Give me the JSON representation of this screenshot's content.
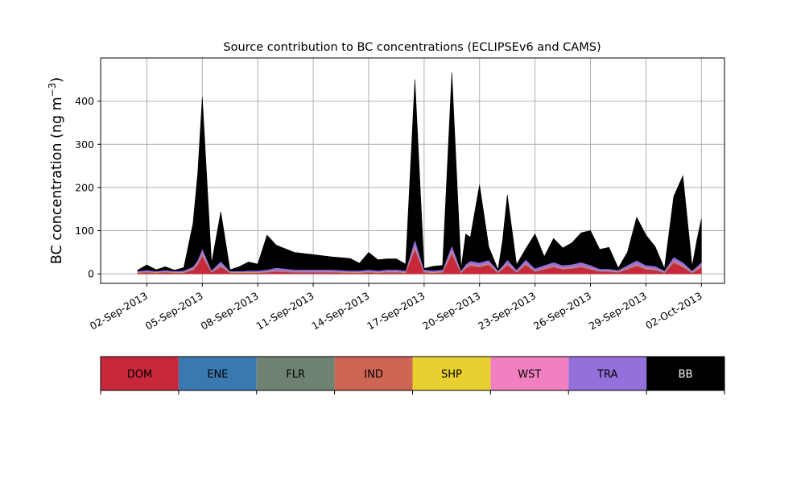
{
  "chart_data": {
    "type": "area",
    "stacked": true,
    "title": "Source contribution to BC concentrations (ECLIPSEv6 and CAMS)",
    "ylabel_main": "BC concentration (ng m",
    "ylabel_sup": "−3",
    "ylabel_end": ")",
    "xlabel": "",
    "ylim": [
      -22,
      500
    ],
    "yticks": [
      0,
      100,
      200,
      300,
      400
    ],
    "xlim": [
      "2013-08-30T12:00",
      "2013-10-03T06:00"
    ],
    "xticks": [
      "02-Sep-2013",
      "05-Sep-2013",
      "08-Sep-2013",
      "11-Sep-2013",
      "14-Sep-2013",
      "17-Sep-2013",
      "20-Sep-2013",
      "23-Sep-2013",
      "26-Sep-2013",
      "29-Sep-2013",
      "02-Oct-2013"
    ],
    "grid": true,
    "legend_position": "below",
    "x": [
      "2013-09-01T12:00",
      "2013-09-02T00:00",
      "2013-09-02T12:00",
      "2013-09-03T00:00",
      "2013-09-03T12:00",
      "2013-09-04T00:00",
      "2013-09-04T12:00",
      "2013-09-04T18:00",
      "2013-09-05T00:00",
      "2013-09-05T12:00",
      "2013-09-06T00:00",
      "2013-09-06T12:00",
      "2013-09-07T00:00",
      "2013-09-07T12:00",
      "2013-09-08T00:00",
      "2013-09-08T12:00",
      "2013-09-09T00:00",
      "2013-09-10T00:00",
      "2013-09-11T00:00",
      "2013-09-12T00:00",
      "2013-09-13T00:00",
      "2013-09-13T12:00",
      "2013-09-14T00:00",
      "2013-09-14T12:00",
      "2013-09-15T00:00",
      "2013-09-15T12:00",
      "2013-09-16T00:00",
      "2013-09-16T12:00",
      "2013-09-17T00:00",
      "2013-09-17T12:00",
      "2013-09-18T00:00",
      "2013-09-18T12:00",
      "2013-09-19T00:00",
      "2013-09-19T06:00",
      "2013-09-19T12:00",
      "2013-09-20T00:00",
      "2013-09-20T12:00",
      "2013-09-21T00:00",
      "2013-09-21T06:00",
      "2013-09-21T12:00",
      "2013-09-22T00:00",
      "2013-09-22T12:00",
      "2013-09-23T00:00",
      "2013-09-23T12:00",
      "2013-09-24T00:00",
      "2013-09-24T12:00",
      "2013-09-25T00:00",
      "2013-09-25T12:00",
      "2013-09-26T00:00",
      "2013-09-26T12:00",
      "2013-09-27T00:00",
      "2013-09-27T12:00",
      "2013-09-28T00:00",
      "2013-09-28T12:00",
      "2013-09-29T00:00",
      "2013-09-29T12:00",
      "2013-09-30T00:00",
      "2013-09-30T12:00",
      "2013-10-01T00:00",
      "2013-10-01T12:00",
      "2013-10-01T18:00",
      "2013-10-02T00:00"
    ],
    "series": [
      {
        "name": "DOM",
        "color": "#c9283a",
        "values": [
          2,
          3,
          2,
          3,
          2,
          2,
          8,
          20,
          40,
          3,
          15,
          2,
          2,
          2,
          2,
          3,
          5,
          3,
          3,
          3,
          2,
          2,
          3,
          2,
          3,
          3,
          2,
          55,
          3,
          2,
          3,
          45,
          2,
          12,
          18,
          15,
          20,
          2,
          10,
          20,
          3,
          20,
          5,
          10,
          15,
          10,
          12,
          15,
          10,
          5,
          5,
          3,
          10,
          18,
          10,
          8,
          2,
          25,
          15,
          2,
          8,
          15
        ]
      },
      {
        "name": "ENE",
        "color": "#3a78b0",
        "values": [
          0.5,
          0.5,
          0.5,
          0.5,
          0.5,
          0.5,
          1,
          1,
          1,
          0.5,
          1,
          0.5,
          0.5,
          0.5,
          0.5,
          0.5,
          0.5,
          0.5,
          0.5,
          0.5,
          0.5,
          0.5,
          0.5,
          0.5,
          0.5,
          0.5,
          0.5,
          1,
          0.5,
          0.5,
          0.5,
          1,
          0.5,
          0.5,
          0.5,
          0.5,
          0.5,
          0.5,
          0.5,
          0.5,
          0.5,
          0.5,
          0.5,
          0.5,
          0.5,
          0.5,
          0.5,
          0.5,
          0.5,
          0.5,
          0.5,
          0.5,
          0.5,
          0.5,
          0.5,
          0.5,
          0.5,
          0.5,
          0.5,
          0.5,
          0.5,
          0.5
        ]
      },
      {
        "name": "FLR",
        "color": "#6f8272",
        "values": [
          0.3,
          0.3,
          0.3,
          0.3,
          0.3,
          0.3,
          0.5,
          0.5,
          0.5,
          0.3,
          0.5,
          0.3,
          0.3,
          0.3,
          0.3,
          0.3,
          0.3,
          0.3,
          0.3,
          0.3,
          0.3,
          0.3,
          0.3,
          0.3,
          0.3,
          0.3,
          0.3,
          0.5,
          0.3,
          0.3,
          0.3,
          0.5,
          0.3,
          0.3,
          0.3,
          0.3,
          0.3,
          0.3,
          0.3,
          0.3,
          0.3,
          0.3,
          0.3,
          0.3,
          0.3,
          0.3,
          0.3,
          0.3,
          0.3,
          0.3,
          0.3,
          0.3,
          0.3,
          0.3,
          0.3,
          0.3,
          0.3,
          0.3,
          0.3,
          0.3,
          0.3,
          0.3
        ]
      },
      {
        "name": "IND",
        "color": "#cc6554",
        "values": [
          1,
          1,
          1,
          1,
          1,
          1,
          2,
          3,
          5,
          1,
          3,
          1,
          1,
          1,
          1,
          1,
          2,
          1,
          1,
          1,
          1,
          1,
          1,
          1,
          1,
          1,
          1,
          6,
          1,
          1,
          1,
          5,
          1,
          2,
          3,
          3,
          3,
          1,
          2,
          3,
          1,
          3,
          1,
          2,
          3,
          2,
          2,
          3,
          2,
          1,
          1,
          1,
          2,
          3,
          2,
          2,
          1,
          4,
          3,
          1,
          2,
          3
        ]
      },
      {
        "name": "SHP",
        "color": "#e8d030",
        "values": [
          0.3,
          0.3,
          0.3,
          0.3,
          0.3,
          0.3,
          0.5,
          0.5,
          0.5,
          0.3,
          0.5,
          0.3,
          0.3,
          0.3,
          0.3,
          0.3,
          0.3,
          0.3,
          0.3,
          0.3,
          0.3,
          0.3,
          0.3,
          0.3,
          0.3,
          0.3,
          0.3,
          0.5,
          0.3,
          0.3,
          0.3,
          0.5,
          0.3,
          0.3,
          0.3,
          0.3,
          0.3,
          0.3,
          0.3,
          0.3,
          0.3,
          0.3,
          0.3,
          0.3,
          0.3,
          0.3,
          0.3,
          0.3,
          0.3,
          0.3,
          0.3,
          0.3,
          0.3,
          0.3,
          0.3,
          0.3,
          0.3,
          0.3,
          0.3,
          0.3,
          0.3,
          0.3
        ]
      },
      {
        "name": "WST",
        "color": "#f080c0",
        "values": [
          0.5,
          0.5,
          0.5,
          0.5,
          0.5,
          0.5,
          1,
          1,
          2,
          0.5,
          1,
          0.5,
          0.5,
          0.5,
          0.5,
          0.5,
          0.5,
          0.5,
          0.5,
          0.5,
          0.5,
          0.5,
          0.5,
          0.5,
          0.5,
          0.5,
          0.5,
          2,
          0.5,
          0.5,
          0.5,
          2,
          0.5,
          1,
          1,
          1,
          1,
          0.5,
          1,
          1,
          0.5,
          1,
          0.5,
          1,
          1,
          1,
          1,
          1,
          1,
          0.5,
          0.5,
          0.5,
          1,
          1,
          1,
          1,
          0.5,
          1,
          1,
          0.5,
          1,
          1
        ]
      },
      {
        "name": "TRA",
        "color": "#9370db",
        "values": [
          2,
          3,
          2,
          3,
          2,
          3,
          4,
          6,
          10,
          3,
          8,
          2,
          2,
          3,
          3,
          4,
          6,
          4,
          4,
          4,
          3,
          3,
          4,
          3,
          4,
          4,
          3,
          15,
          4,
          3,
          4,
          12,
          3,
          6,
          7,
          6,
          7,
          3,
          5,
          8,
          4,
          8,
          5,
          6,
          7,
          6,
          6,
          7,
          6,
          4,
          4,
          3,
          6,
          8,
          6,
          6,
          3,
          8,
          7,
          3,
          5,
          7
        ]
      },
      {
        "name": "BB",
        "color": "#000000",
        "values": [
          2,
          12,
          3,
          8,
          2,
          7,
          100,
          200,
          350,
          16,
          115,
          3,
          10,
          20,
          15,
          80,
          52,
          40,
          35,
          30,
          28,
          17,
          40,
          25,
          25,
          25,
          15,
          370,
          3,
          10,
          10,
          400,
          5,
          70,
          55,
          180,
          30,
          2,
          60,
          150,
          12,
          25,
          80,
          20,
          55,
          40,
          50,
          68,
          80,
          45,
          50,
          5,
          30,
          100,
          70,
          45,
          5,
          140,
          200,
          10,
          60,
          100
        ]
      }
    ]
  },
  "legend": {
    "items": [
      {
        "label": "DOM",
        "color": "#c9283a",
        "text_color": "#000000"
      },
      {
        "label": "ENE",
        "color": "#3a78b0",
        "text_color": "#000000"
      },
      {
        "label": "FLR",
        "color": "#6f8272",
        "text_color": "#000000"
      },
      {
        "label": "IND",
        "color": "#cc6554",
        "text_color": "#000000"
      },
      {
        "label": "SHP",
        "color": "#e8d030",
        "text_color": "#000000"
      },
      {
        "label": "WST",
        "color": "#f080c0",
        "text_color": "#000000"
      },
      {
        "label": "TRA",
        "color": "#9370db",
        "text_color": "#000000"
      },
      {
        "label": "BB",
        "color": "#000000",
        "text_color": "#ffffff"
      }
    ]
  }
}
